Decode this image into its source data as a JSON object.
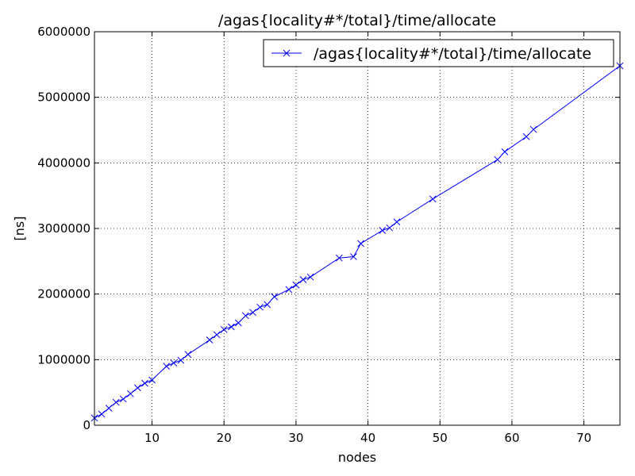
{
  "chart_data": {
    "type": "line",
    "title": "/agas{locality#*/total}/time/allocate",
    "xlabel": "nodes",
    "ylabel": "[ns]",
    "xlim": [
      2,
      75
    ],
    "ylim": [
      0,
      6000000
    ],
    "xticks": [
      10,
      20,
      30,
      40,
      50,
      60,
      70
    ],
    "yticks": [
      0,
      1000000,
      2000000,
      3000000,
      4000000,
      5000000,
      6000000
    ],
    "grid": true,
    "legend_position": "top-right",
    "series": [
      {
        "name": "/agas{locality#*/total}/time/allocate",
        "color": "#0000ff",
        "marker": "x",
        "x": [
          2,
          3,
          4,
          5,
          6,
          7,
          8,
          9,
          10,
          12,
          13,
          14,
          15,
          18,
          19,
          20,
          21,
          22,
          23,
          24,
          25,
          26,
          27,
          29,
          30,
          31,
          32,
          36,
          38,
          39,
          42,
          43,
          44,
          49,
          58,
          59,
          62,
          63,
          75
        ],
        "y": [
          110000,
          170000,
          260000,
          350000,
          400000,
          480000,
          570000,
          640000,
          690000,
          900000,
          950000,
          990000,
          1080000,
          1300000,
          1380000,
          1460000,
          1500000,
          1560000,
          1670000,
          1720000,
          1800000,
          1840000,
          1960000,
          2070000,
          2140000,
          2220000,
          2260000,
          2550000,
          2570000,
          2770000,
          2970000,
          3010000,
          3100000,
          3450000,
          4050000,
          4170000,
          4400000,
          4510000,
          5480000
        ]
      }
    ]
  }
}
